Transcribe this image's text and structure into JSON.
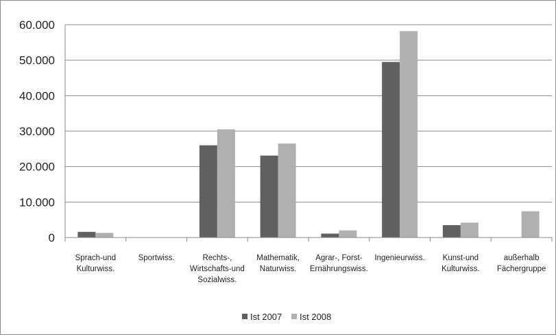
{
  "chart_data": {
    "type": "bar",
    "categories": [
      [
        "Sprach-und",
        "Kulturwiss."
      ],
      [
        "Sportwiss."
      ],
      [
        "Rechts-,",
        "Wirtschafts-und",
        "Sozialwiss."
      ],
      [
        "Mathematik,",
        "Naturwiss."
      ],
      [
        "Agrar-, Forst-",
        "Ernährungswiss."
      ],
      [
        "Ingenieurwiss."
      ],
      [
        "Kunst-und",
        "Kulturwiss."
      ],
      [
        "außerhalb",
        "Fächergruppe"
      ]
    ],
    "series": [
      {
        "name": "Ist 2007",
        "color": "#606060",
        "values": [
          1600,
          0,
          26000,
          23100,
          1100,
          49500,
          3500,
          0
        ]
      },
      {
        "name": "Ist 2008",
        "color": "#b0b0b0",
        "values": [
          1300,
          0,
          30500,
          26500,
          2000,
          58200,
          4200,
          7400
        ]
      }
    ],
    "yticks": [
      "0",
      "10.000",
      "20.000",
      "30.000",
      "40.000",
      "50.000",
      "60.000"
    ],
    "ylim": [
      0,
      60000
    ],
    "grid": true,
    "legend_position": "bottom"
  }
}
